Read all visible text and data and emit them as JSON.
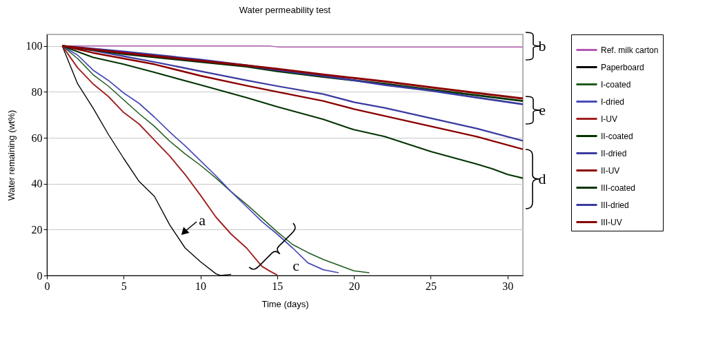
{
  "chart_data": {
    "type": "line",
    "title": "Water permeability test",
    "xlabel": "Time (days)",
    "ylabel": "Water remaining (wt%)",
    "xlim": [
      0,
      31
    ],
    "xticks": [
      0,
      5,
      10,
      15,
      20,
      25,
      30
    ],
    "ylim": [
      0,
      105
    ],
    "yticks": [
      0,
      20,
      40,
      60,
      80,
      100
    ],
    "grid": "y",
    "legend": "right",
    "series": [
      {
        "name": "Ref. milk carton",
        "color": "#b455b4",
        "x": [
          1,
          14.5,
          15.1,
          31
        ],
        "values": [
          100,
          100,
          99.5,
          99.5
        ]
      },
      {
        "name": "Paperboard",
        "color": "#000000",
        "x": [
          1,
          2,
          3,
          4,
          5,
          6,
          7,
          8,
          9,
          10,
          11,
          11.3,
          12
        ],
        "values": [
          100,
          83.5,
          73,
          61.5,
          51,
          41,
          34.5,
          22,
          12,
          6,
          0.8,
          0,
          0.5
        ]
      },
      {
        "name": "I-coated",
        "color": "#1e5c1e",
        "x": [
          1,
          2,
          3,
          4,
          5,
          6,
          7,
          8,
          9,
          10,
          11,
          12,
          13,
          14,
          15,
          16,
          17,
          18,
          19,
          20,
          21
        ],
        "values": [
          100,
          94.5,
          87.5,
          82.5,
          76.5,
          70.5,
          65,
          58.5,
          53,
          48,
          42.5,
          36.5,
          31,
          25,
          19,
          13.5,
          10,
          7,
          4.5,
          2,
          1.2
        ]
      },
      {
        "name": "I-dried",
        "color": "#4a4ab8",
        "x": [
          1,
          2,
          3,
          4,
          5,
          6,
          7,
          8,
          9,
          10,
          11,
          12,
          13,
          14,
          15,
          16,
          17,
          18,
          19
        ],
        "values": [
          100,
          96,
          89.5,
          85,
          79.5,
          75,
          69,
          62.5,
          56.5,
          50,
          43.5,
          36.5,
          30,
          23.5,
          18,
          12,
          5.5,
          2.5,
          1.2
        ]
      },
      {
        "name": "I-UV",
        "color": "#a02020",
        "x": [
          1,
          2,
          3,
          4,
          5,
          6,
          7,
          8,
          9,
          10,
          11,
          12,
          13,
          14,
          14.5,
          15
        ],
        "values": [
          100,
          90.5,
          83.5,
          78,
          71,
          66,
          59,
          52,
          44,
          35,
          25.5,
          18,
          12,
          4,
          2,
          0.2
        ]
      },
      {
        "name": "II-coated",
        "color": "#003300",
        "x": [
          1,
          3,
          5,
          7,
          10,
          13,
          15,
          18,
          20,
          22,
          25,
          28,
          29,
          30,
          31
        ],
        "values": [
          100,
          95,
          92,
          88.5,
          83,
          77.5,
          73.5,
          68,
          63.5,
          60.5,
          54,
          48.5,
          46.5,
          44,
          42.4
        ]
      },
      {
        "name": "II-dried",
        "color": "#3a3aa0",
        "x": [
          1,
          3,
          5,
          7,
          10,
          13,
          15,
          18,
          20,
          22,
          25,
          28,
          31
        ],
        "values": [
          100,
          98,
          95.5,
          93,
          89,
          85,
          82.5,
          79,
          75.5,
          73,
          68.5,
          64,
          58.7
        ]
      },
      {
        "name": "II-UV",
        "color": "#8b0000",
        "x": [
          1,
          3,
          5,
          7,
          10,
          13,
          15,
          18,
          20,
          22,
          25,
          28,
          31
        ],
        "values": [
          100,
          97,
          94.5,
          92,
          87,
          82.7,
          80,
          76,
          72.5,
          69.5,
          65,
          60.5,
          55
        ]
      },
      {
        "name": "III-coated",
        "color": "#003300",
        "x": [
          1,
          5,
          10,
          13,
          15,
          18,
          20,
          22,
          25,
          28,
          31
        ],
        "values": [
          100,
          96.5,
          93,
          91,
          89,
          86.5,
          85,
          83.5,
          81,
          78.5,
          76
        ]
      },
      {
        "name": "III-dried",
        "color": "#3a3aa0",
        "x": [
          1,
          5,
          10,
          13,
          15,
          18,
          20,
          22,
          25,
          28,
          31
        ],
        "values": [
          100,
          97.5,
          94,
          91.5,
          89.5,
          87,
          85,
          83,
          80.5,
          77.5,
          74.6
        ]
      },
      {
        "name": "III-UV",
        "color": "#8b0000",
        "x": [
          1,
          5,
          10,
          13,
          15,
          18,
          20,
          22,
          25,
          28,
          31
        ],
        "values": [
          100,
          97,
          93.5,
          91.5,
          90,
          87.5,
          86,
          84.5,
          82,
          79.5,
          77.1
        ]
      }
    ],
    "annotations": [
      "a",
      "b",
      "c",
      "d",
      "e"
    ]
  }
}
